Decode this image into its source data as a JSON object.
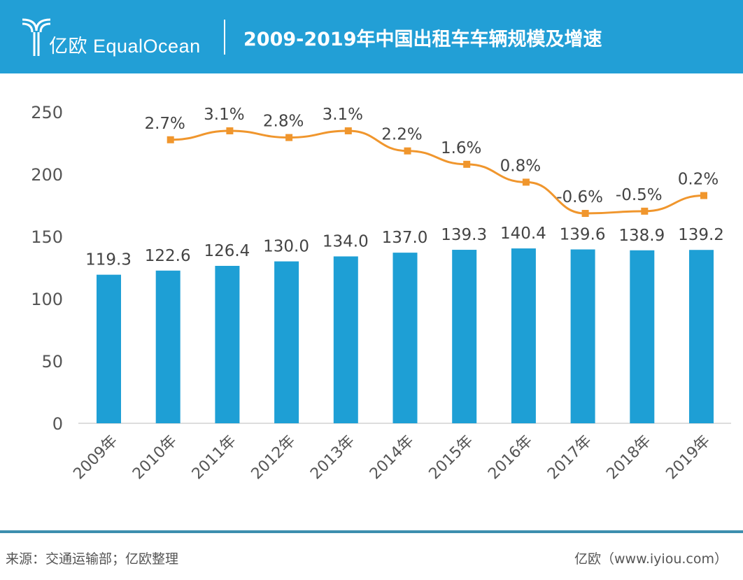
{
  "header": {
    "logo_text": "亿欧 EqualOcean",
    "title": "2009-2019年中国出租车车辆规模及增速"
  },
  "footer": {
    "source": "来源：交通运输部；亿欧整理",
    "site": "亿欧（www.iyiou.com）"
  },
  "colors": {
    "header": "#229fd6",
    "bar": "#1e9fd5",
    "line": "#f0962d"
  },
  "chart_data": {
    "type": "bar+line",
    "categories": [
      "2009年",
      "2010年",
      "2011年",
      "2012年",
      "2013年",
      "2014年",
      "2015年",
      "2016年",
      "2017年",
      "2018年",
      "2019年"
    ],
    "series": [
      {
        "type": "bar",
        "values": [
          119.3,
          122.6,
          126.4,
          130.0,
          134.0,
          137.0,
          139.3,
          140.4,
          139.6,
          138.9,
          139.2
        ],
        "labels": [
          "119.3",
          "122.6",
          "126.4",
          "130.0",
          "134.0",
          "137.0",
          "139.3",
          "140.4",
          "139.6",
          "138.9",
          "139.2"
        ]
      },
      {
        "type": "line",
        "axis": "secondary-hidden",
        "values": [
          null,
          2.7,
          3.1,
          2.8,
          3.1,
          2.2,
          1.6,
          0.8,
          -0.6,
          -0.5,
          0.2
        ],
        "labels": [
          "",
          "2.7%",
          "3.1%",
          "2.8%",
          "3.1%",
          "2.2%",
          "1.6%",
          "0.8%",
          "-0.6%",
          "-0.5%",
          "0.2%"
        ]
      }
    ],
    "ylim": [
      0,
      250
    ],
    "yticks": [
      "0",
      "50",
      "100",
      "150",
      "200",
      "250"
    ],
    "grid": false,
    "legend": "none"
  }
}
